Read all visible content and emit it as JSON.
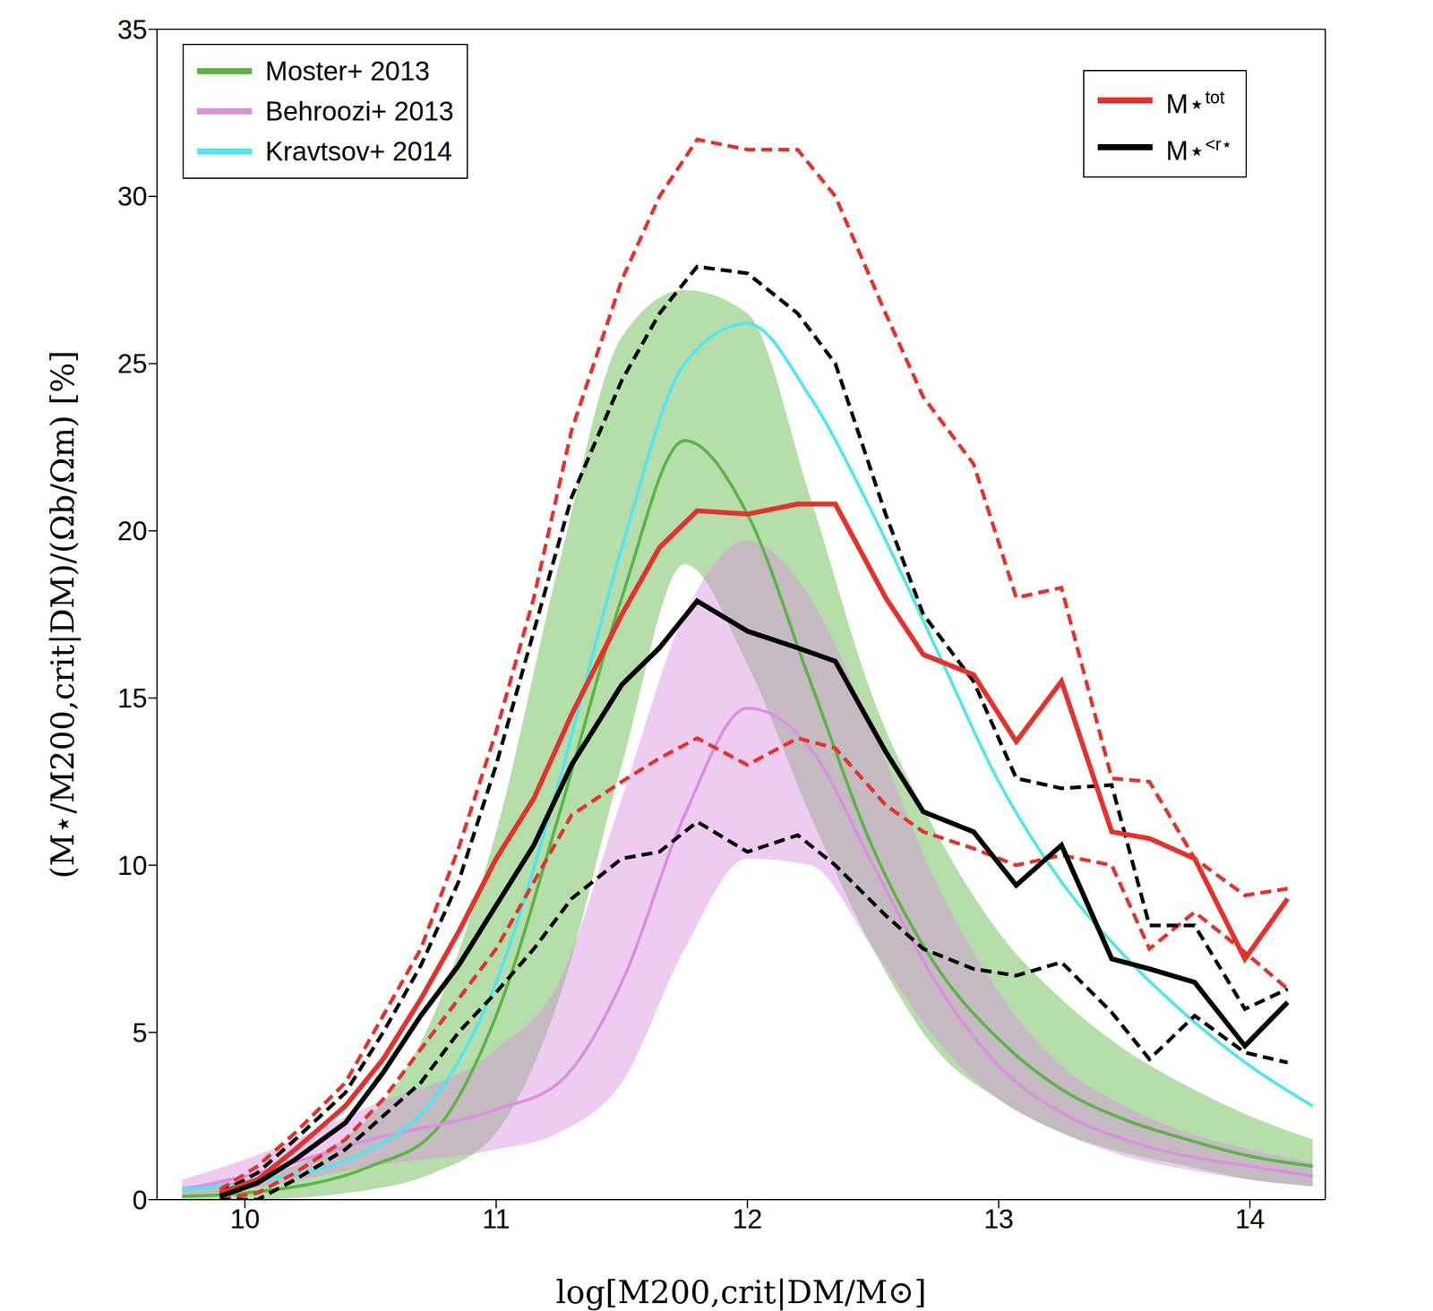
{
  "chart_data": {
    "type": "line",
    "xlabel": "log[M200,crit|DM/M⊙]",
    "ylabel": "(M⋆/M200,crit|DM)/(Ωb/Ωm) [%]",
    "xlim": [
      9.65,
      14.3
    ],
    "xticks": [
      10,
      11,
      12,
      13,
      14
    ],
    "ylim": [
      0,
      35
    ],
    "yticks": [
      0,
      5,
      10,
      15,
      20,
      25,
      30,
      35
    ],
    "grid": false,
    "legend": "upper left",
    "series": [
      {
        "name": "Moster+ 2013",
        "color": "#5ab543",
        "line_style": "solid",
        "x": [
          9.75,
          10,
          10.5,
          10.75,
          11,
          11.25,
          11.5,
          11.75,
          12,
          12.25,
          12.5,
          12.75,
          13,
          13.25,
          13.5,
          13.75,
          14,
          14.25
        ],
        "values": [
          0.1,
          0.2,
          1,
          2,
          5.5,
          11.5,
          18,
          22.7,
          20.5,
          15.5,
          10.5,
          7,
          4.8,
          3.3,
          2.4,
          1.8,
          1.3,
          1.0
        ],
        "band": {
          "lower": [
            0,
            0,
            0.3,
            0.8,
            2,
            6,
            13,
            19,
            16,
            11.5,
            7.5,
            4.5,
            3,
            2,
            1.4,
            1,
            0.6,
            0.4
          ],
          "upper": [
            0.4,
            0.6,
            2.5,
            5.5,
            11,
            19,
            25.8,
            27.2,
            26.5,
            21,
            15,
            11,
            8,
            6,
            4.5,
            3.4,
            2.5,
            1.8
          ]
        }
      },
      {
        "name": "Behroozi+ 2013",
        "color": "#da8fe0",
        "line_style": "solid",
        "x": [
          9.75,
          10,
          10.5,
          11,
          11.25,
          11.5,
          11.75,
          12,
          12.25,
          12.5,
          12.75,
          13,
          13.25,
          13.5,
          13.75,
          14,
          14.25
        ],
        "values": [
          0.3,
          0.7,
          1.8,
          2.7,
          3.5,
          6.5,
          11.5,
          14.7,
          13.5,
          10,
          6.5,
          4,
          2.6,
          1.8,
          1.3,
          1,
          0.7
        ],
        "band": {
          "lower": [
            0.1,
            0.3,
            1,
            1.5,
            2,
            3.5,
            7.5,
            10.2,
            10,
            7.5,
            4.8,
            3,
            2,
            1.3,
            0.9,
            0.6,
            0.4
          ],
          "upper": [
            0.6,
            1.2,
            2.8,
            4.5,
            6.5,
            12,
            17.5,
            19.7,
            18,
            14,
            9.5,
            6.2,
            4,
            2.8,
            2,
            1.5,
            1.1
          ]
        }
      },
      {
        "name": "Kravtsov+ 2014",
        "color": "#4fe6f0",
        "line_style": "solid",
        "x": [
          9.75,
          10,
          10.5,
          10.75,
          11,
          11.25,
          11.5,
          11.75,
          12,
          12.25,
          12.5,
          12.75,
          13,
          13.25,
          13.5,
          13.75,
          14,
          14.25
        ],
        "values": [
          0.3,
          0.5,
          1.5,
          3,
          6.5,
          12.5,
          19.5,
          25,
          26.2,
          24,
          20.5,
          16.5,
          12.5,
          9.5,
          7.3,
          5.5,
          4,
          2.8
        ]
      },
      {
        "name": "M⋆tot",
        "color": "#e6312b",
        "line_style": "solid",
        "x": [
          9.9,
          10.05,
          10.2,
          10.4,
          10.55,
          10.7,
          10.85,
          11.0,
          11.15,
          11.3,
          11.5,
          11.65,
          11.8,
          12.0,
          12.2,
          12.35,
          12.55,
          12.7,
          12.9,
          13.07,
          13.25,
          13.45,
          13.6,
          13.78,
          13.98,
          14.15
        ],
        "values": [
          0.2,
          0.6,
          1.5,
          2.8,
          4.2,
          6,
          8,
          10.2,
          12,
          14.5,
          17.5,
          19.5,
          20.6,
          20.5,
          20.8,
          20.8,
          18,
          16.3,
          15.7,
          13.7,
          15.5,
          11,
          10.8,
          10.2,
          7.2,
          9
        ],
        "percentiles": {
          "line_style": "dashed",
          "lower": [
            0,
            0.2,
            0.8,
            1.8,
            3,
            4.5,
            6,
            7.5,
            9.5,
            11.5,
            12.5,
            13.2,
            13.8,
            13,
            13.8,
            13.5,
            11.8,
            11,
            10.5,
            10,
            10.3,
            10,
            7.5,
            8.6,
            7.4,
            6.3
          ],
          "upper": [
            0.3,
            1,
            2,
            3.5,
            5.5,
            7.5,
            10.5,
            14,
            18,
            23,
            27.5,
            30,
            31.7,
            31.4,
            31.4,
            30,
            26.5,
            24,
            22,
            18,
            18.3,
            12.6,
            12.5,
            10.2,
            9.1,
            9.3
          ]
        }
      },
      {
        "name": "M⋆<r⋆",
        "color": "#000000",
        "line_style": "solid",
        "x": [
          9.9,
          10.05,
          10.2,
          10.4,
          10.55,
          10.7,
          10.85,
          11.0,
          11.15,
          11.3,
          11.5,
          11.65,
          11.8,
          12.0,
          12.2,
          12.35,
          12.55,
          12.7,
          12.9,
          13.07,
          13.25,
          13.45,
          13.6,
          13.78,
          13.98,
          14.15
        ],
        "values": [
          0.1,
          0.5,
          1.2,
          2.3,
          3.8,
          5.5,
          7,
          8.8,
          10.6,
          13,
          15.4,
          16.5,
          17.9,
          17,
          16.5,
          16.1,
          13.4,
          11.6,
          11,
          9.4,
          10.6,
          7.2,
          6.9,
          6.5,
          4.6,
          5.9
        ],
        "percentiles": {
          "line_style": "dashed",
          "lower": [
            0,
            0,
            0.6,
            1.5,
            2.5,
            3.5,
            5,
            6.2,
            7.5,
            9,
            10.2,
            10.4,
            11.3,
            10.4,
            10.9,
            10,
            8.5,
            7.5,
            6.9,
            6.7,
            7.1,
            5.6,
            4.2,
            5.5,
            4.4,
            4.1
          ],
          "upper": [
            0.2,
            0.8,
            1.8,
            3.2,
            5,
            7,
            9.5,
            13,
            17,
            21,
            24.5,
            26.5,
            27.9,
            27.7,
            26.5,
            25,
            20.5,
            17.5,
            15.5,
            12.6,
            12.3,
            12.4,
            8.2,
            8.2,
            5.7,
            6.3
          ]
        }
      }
    ]
  }
}
